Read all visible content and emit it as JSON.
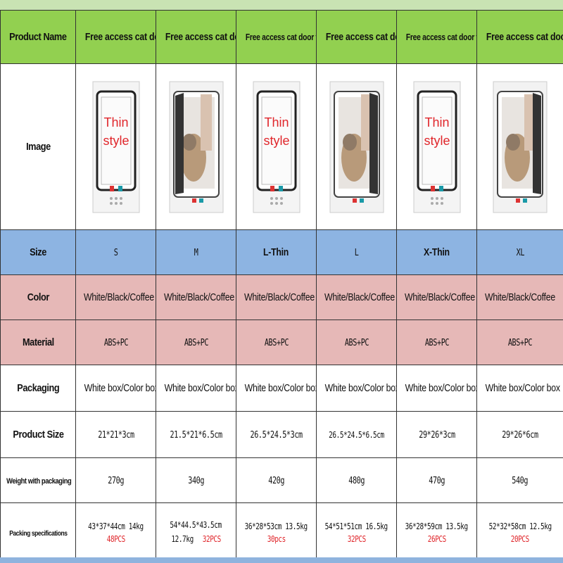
{
  "labels": {
    "product_name": "Product Name",
    "image": "Image",
    "size": "Size",
    "color": "Color",
    "material": "Material",
    "packaging": "Packaging",
    "product_size": "Product Size",
    "weight": "Weight with packaging",
    "packing": "Packing specifications"
  },
  "colors": {
    "header": "#92d050",
    "size_row": "#8db4e2",
    "color_row": "#e6b8b7",
    "accent_red": "#e0262b"
  },
  "products": [
    {
      "name": "Free access cat door",
      "image": {
        "style": "thin",
        "text1": "Thin",
        "text2": "style"
      },
      "size": "S",
      "color": "White/Black/Coffee",
      "material": "ABS+PC",
      "packaging": "White box/Color box",
      "product_size": "21*21*3cm",
      "weight": "270g",
      "spec_line1": "43*37*44cm  14kg",
      "spec_line2": "",
      "qty": "48PCS"
    },
    {
      "name": "Free access cat door",
      "image": {
        "style": "cat"
      },
      "size": "M",
      "color": "White/Black/Coffee",
      "material": "ABS+PC",
      "packaging": "White box/Color box",
      "product_size": "21.5*21*6.5cm",
      "weight": "340g",
      "spec_line1": "54*44.5*43.5cm",
      "spec_line2": "12.7kg",
      "qty": "32PCS"
    },
    {
      "name": "Free access cat door thin",
      "image": {
        "style": "thin",
        "text1": "Thin",
        "text2": "style"
      },
      "size": "L-Thin",
      "color": "White/Black/Coffee",
      "material": "ABS+PC",
      "packaging": "White box/Color box",
      "product_size": "26.5*24.5*3cm",
      "weight": "420g",
      "spec_line1": "36*28*53cm 13.5kg",
      "spec_line2": "",
      "qty": "30pcs"
    },
    {
      "name": "Free access cat door",
      "image": {
        "style": "cat"
      },
      "size": "L",
      "color": "White/Black/Coffee",
      "material": "ABS+PC",
      "packaging": "White box/Color box",
      "product_size": "26.5*24.5*6.5cm",
      "weight": "480g",
      "spec_line1": "54*51*51cm  16.5kg",
      "spec_line2": "",
      "qty": "32PCS"
    },
    {
      "name": "Free access cat door thin",
      "image": {
        "style": "thin",
        "text1": "Thin",
        "text2": "style"
      },
      "size": "X-Thin",
      "color": "White/Black/Coffee",
      "material": "ABS+PC",
      "packaging": "White box/Color box",
      "product_size": "29*26*3cm",
      "weight": "470g",
      "spec_line1": "36*28*59cm 13.5kg",
      "spec_line2": "",
      "qty": "26PCS"
    },
    {
      "name": "Free access cat door",
      "image": {
        "style": "cat"
      },
      "size": "XL",
      "color": "White/Black/Coffee",
      "material": "ABS+PC",
      "packaging": "White box/Color box",
      "product_size": "29*26*6cm",
      "weight": "540g",
      "spec_line1": "52*32*58cm  12.5kg",
      "spec_line2": "",
      "qty": "20PCS"
    }
  ]
}
